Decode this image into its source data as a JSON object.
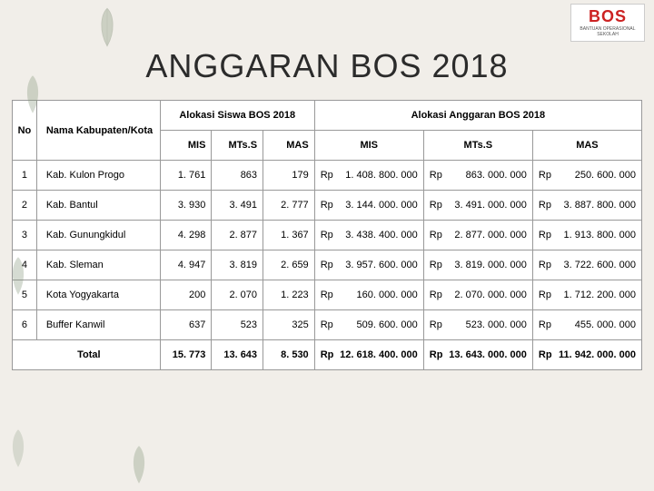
{
  "title": "ANGGARAN BOS 2018",
  "logo": {
    "top": "BOS",
    "bottom": "BANTUAN OPERASIONAL SEKOLAH"
  },
  "headers": {
    "no": "No",
    "nama": "Nama Kabupaten/Kota",
    "siswa_group": "Alokasi Siswa BOS 2018",
    "anggaran_group": "Alokasi Anggaran BOS 2018",
    "mis": "MIS",
    "mtss": "MTs.S",
    "mas": "MAS"
  },
  "currency": "Rp",
  "rows": [
    {
      "no": "1",
      "nama": "Kab. Kulon Progo",
      "s_mis": "1. 761",
      "s_mtss": "863",
      "s_mas": "179",
      "a_mis": "1. 408. 800. 000",
      "a_mtss": "863. 000. 000",
      "a_mas": "250. 600. 000"
    },
    {
      "no": "2",
      "nama": "Kab. Bantul",
      "s_mis": "3. 930",
      "s_mtss": "3. 491",
      "s_mas": "2. 777",
      "a_mis": "3. 144. 000. 000",
      "a_mtss": "3. 491. 000. 000",
      "a_mas": "3. 887. 800. 000"
    },
    {
      "no": "3",
      "nama": "Kab. Gunungkidul",
      "s_mis": "4. 298",
      "s_mtss": "2. 877",
      "s_mas": "1. 367",
      "a_mis": "3. 438. 400. 000",
      "a_mtss": "2. 877. 000. 000",
      "a_mas": "1. 913. 800. 000"
    },
    {
      "no": "4",
      "nama": "Kab. Sleman",
      "s_mis": "4. 947",
      "s_mtss": "3. 819",
      "s_mas": "2. 659",
      "a_mis": "3. 957. 600. 000",
      "a_mtss": "3. 819. 000. 000",
      "a_mas": "3. 722. 600. 000"
    },
    {
      "no": "5",
      "nama": "Kota Yogyakarta",
      "s_mis": "200",
      "s_mtss": "2. 070",
      "s_mas": "1. 223",
      "a_mis": "160. 000. 000",
      "a_mtss": "2. 070. 000. 000",
      "a_mas": "1. 712. 200. 000"
    },
    {
      "no": "6",
      "nama": "Buffer Kanwil",
      "s_mis": "637",
      "s_mtss": "523",
      "s_mas": "325",
      "a_mis": "509. 600. 000",
      "a_mtss": "523. 000. 000",
      "a_mas": "455. 000. 000"
    }
  ],
  "total": {
    "label": "Total",
    "s_mis": "15. 773",
    "s_mtss": "13. 643",
    "s_mas": "8. 530",
    "a_mis": "12. 618. 400. 000",
    "a_mtss": "13. 643. 000. 000",
    "a_mas": "11. 942. 000. 000"
  },
  "styling": {
    "page_bg": "#f1eee9",
    "table_bg": "#ffffff",
    "border_color": "#999999",
    "text_color": "#000000",
    "title_fontsize": 36,
    "body_fontsize": 11,
    "leaf_color": "#8a9a7f"
  }
}
